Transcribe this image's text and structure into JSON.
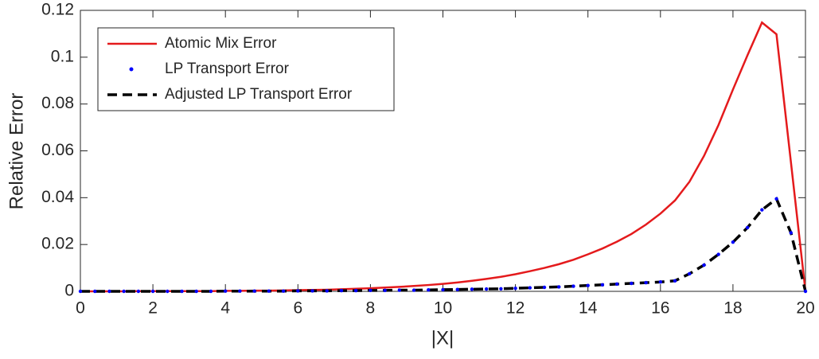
{
  "chart_data": {
    "type": "line",
    "x_label": "|X|",
    "y_label": "Relative Error",
    "x": [
      0,
      0.4,
      0.8,
      1.2,
      1.6,
      2,
      2.4,
      2.8,
      3.2,
      3.6,
      4,
      4.4,
      4.8,
      5.2,
      5.6,
      6,
      6.4,
      6.8,
      7.2,
      7.6,
      8,
      8.4,
      8.8,
      9.2,
      9.6,
      10,
      10.4,
      10.8,
      11.2,
      11.6,
      12,
      12.4,
      12.8,
      13.2,
      13.6,
      14,
      14.4,
      14.8,
      15.2,
      15.6,
      16,
      16.4,
      16.8,
      17.2,
      17.6,
      18,
      18.4,
      18.8,
      19.2,
      19.6,
      20
    ],
    "series": [
      {
        "name": "Atomic Mix Error",
        "color": "#e41a1c",
        "style": "solid",
        "values": [
          0,
          0,
          0,
          0,
          0.0001,
          0.0001,
          0.0001,
          0.0001,
          0.0001,
          0.0001,
          0.0002,
          0.0002,
          0.0003,
          0.0003,
          0.0004,
          0.0005,
          0.0006,
          0.0007,
          0.0009,
          0.0011,
          0.0013,
          0.0016,
          0.0019,
          0.0023,
          0.0027,
          0.0032,
          0.0038,
          0.0045,
          0.0053,
          0.0062,
          0.0073,
          0.0086,
          0.01,
          0.0116,
          0.0135,
          0.0158,
          0.0183,
          0.0212,
          0.0245,
          0.0285,
          0.0332,
          0.0388,
          0.0468,
          0.0578,
          0.071,
          0.0862,
          0.1008,
          0.1148,
          0.1098,
          0.055,
          0
        ]
      },
      {
        "name": "LP Transport Error",
        "color": "#0000ff",
        "style": "dots",
        "values": [
          0,
          0,
          0,
          0,
          0,
          0,
          0,
          0,
          0,
          0,
          0.0001,
          0.0001,
          0.0001,
          0.0001,
          0.0001,
          0.0002,
          0.0002,
          0.0002,
          0.0003,
          0.0003,
          0.0004,
          0.0004,
          0.0005,
          0.0005,
          0.0006,
          0.0007,
          0.0008,
          0.0009,
          0.001,
          0.0011,
          0.0013,
          0.0015,
          0.0017,
          0.0019,
          0.0022,
          0.0025,
          0.0028,
          0.0031,
          0.0034,
          0.0037,
          0.004,
          0.0045,
          0.0075,
          0.0112,
          0.0158,
          0.021,
          0.0272,
          0.0348,
          0.0395,
          0.025,
          0
        ]
      },
      {
        "name": "Adjusted LP Transport Error",
        "color": "#000000",
        "style": "dashed",
        "values": [
          0,
          0,
          0,
          0,
          0,
          0,
          0,
          0,
          0,
          0,
          0.0001,
          0.0001,
          0.0001,
          0.0001,
          0.0001,
          0.0002,
          0.0002,
          0.0002,
          0.0003,
          0.0003,
          0.0004,
          0.0004,
          0.0005,
          0.0005,
          0.0006,
          0.0007,
          0.0008,
          0.0009,
          0.001,
          0.0011,
          0.0013,
          0.0015,
          0.0017,
          0.0019,
          0.0022,
          0.0025,
          0.0028,
          0.0031,
          0.0034,
          0.0037,
          0.004,
          0.0045,
          0.0075,
          0.0112,
          0.0158,
          0.021,
          0.0272,
          0.0348,
          0.0395,
          0.025,
          0
        ]
      }
    ],
    "xlim": [
      0,
      20
    ],
    "xticks": [
      0,
      2,
      4,
      6,
      8,
      10,
      12,
      14,
      16,
      18,
      20
    ],
    "ylim": [
      0,
      0.12
    ],
    "yticks": [
      0,
      0.02,
      0.04,
      0.06,
      0.08,
      0.1,
      0.12
    ],
    "grid": false,
    "legend": "upper-left"
  }
}
